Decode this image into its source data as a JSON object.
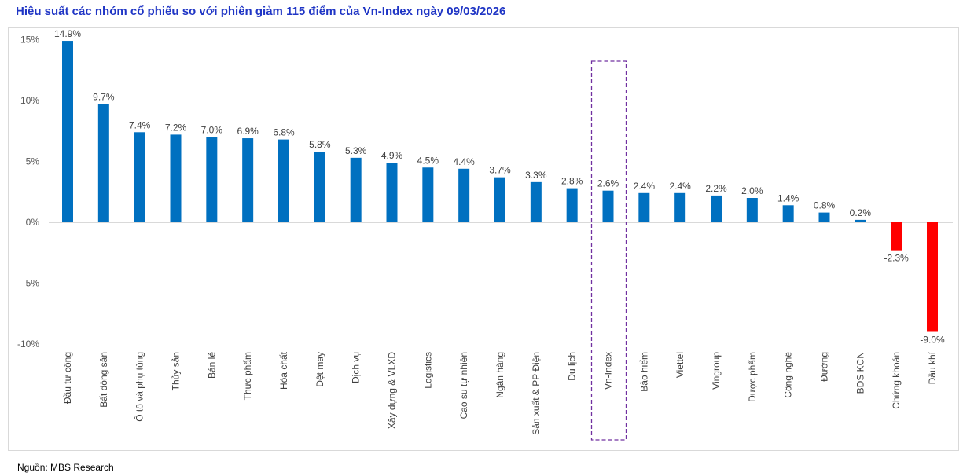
{
  "chart_data": {
    "type": "bar",
    "title": "Hiệu suất các nhóm cổ phiếu so với phiên giảm 115 điểm của Vn-Index ngày 09/03/2026",
    "source": "Nguồn: MBS Research",
    "xlabel": "",
    "ylabel": "",
    "ylim": [
      -10,
      15
    ],
    "yticks": [
      15,
      10,
      5,
      0,
      -5,
      -10
    ],
    "ytick_labels": [
      "15%",
      "10%",
      "5%",
      "0%",
      "-5%",
      "-10%"
    ],
    "grid": false,
    "categories": [
      "Đầu tư công",
      "Bất động sản",
      "Ô tô và phụ tùng",
      "Thủy sản",
      "Bán lẻ",
      "Thực phẩm",
      "Hóa chất",
      "Dệt may",
      "Dịch vụ",
      "Xây dựng & VLXD",
      "Logistics",
      "Cao su tự nhiên",
      "Ngân hàng",
      "Sản xuất & PP Điện",
      "Du lịch",
      "Vn-Index",
      "Bảo hiểm",
      "Viettel",
      "Vingroup",
      "Dược phẩm",
      "Công nghệ",
      "Đường",
      "BDS KCN",
      "Chứng khoán",
      "Dầu khí"
    ],
    "values": [
      14.9,
      9.7,
      7.4,
      7.2,
      7.0,
      6.9,
      6.8,
      5.8,
      5.3,
      4.9,
      4.5,
      4.4,
      3.7,
      3.3,
      2.8,
      2.6,
      2.4,
      2.4,
      2.2,
      2.0,
      1.4,
      0.8,
      0.2,
      -2.3,
      -9.0
    ],
    "data_labels": [
      "14.9%",
      "9.7%",
      "7.4%",
      "7.2%",
      "7.0%",
      "6.9%",
      "6.8%",
      "5.8%",
      "5.3%",
      "4.9%",
      "4.5%",
      "4.4%",
      "3.7%",
      "3.3%",
      "2.8%",
      "2.6%",
      "2.4%",
      "2.4%",
      "2.2%",
      "2.0%",
      "1.4%",
      "0.8%",
      "0.2%",
      "-2.3%",
      "-9.0%"
    ],
    "highlighted_category": "Vn-Index",
    "colors": {
      "positive": "#0070c0",
      "negative": "#ff0000",
      "highlight_box": "#7030a0",
      "title": "#1f35c5"
    }
  }
}
